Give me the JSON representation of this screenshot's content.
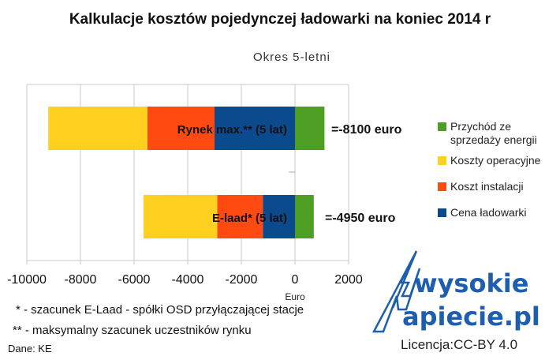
{
  "chart_data": {
    "type": "bar",
    "orientation": "horizontal",
    "stacked": true,
    "title": "Kalkulacje kosztów pojedynczej ładowarki na koniec 2014 r",
    "subtitle": "Okres 5-letni",
    "xlabel": "Euro",
    "xlim": [
      -10000,
      2000
    ],
    "xticks": [
      "-10000",
      "-8000",
      "-6000",
      "-4000",
      "-2000",
      "0",
      "2000"
    ],
    "grid": true,
    "legend_position": "right",
    "categories": [
      "Rynek max.** (5 lat)",
      "E-laad* (5 lat)"
    ],
    "totals": [
      "=-8100 euro",
      "=-4950 euro"
    ],
    "series": [
      {
        "name": "Cena ładowarki",
        "color": "#0b4a8c",
        "values": [
          -3000,
          -1200
        ]
      },
      {
        "name": "Koszt instalacji",
        "color": "#ff4a12",
        "values": [
          -2500,
          -1700
        ]
      },
      {
        "name": "Koszty operacyjne",
        "color": "#ffd020",
        "values": [
          -3700,
          -2750
        ]
      },
      {
        "name": "Przychód ze sprzedaży energii",
        "color": "#4f9e24",
        "values": [
          1100,
          700
        ]
      }
    ],
    "legend_order": [
      3,
      2,
      1,
      0
    ]
  },
  "notes": {
    "n1": "* - szacunek E-Laad - spółki OSD przyłączającej stacje",
    "n2": "** - maksymalny szacunek uczestników rynku",
    "source": "Dane: KE",
    "license": "Licencja:CC-BY 4.0"
  },
  "logo": {
    "line1": "wysokie",
    "line2": "apiecie.pl",
    "color": "#1d5fae"
  }
}
